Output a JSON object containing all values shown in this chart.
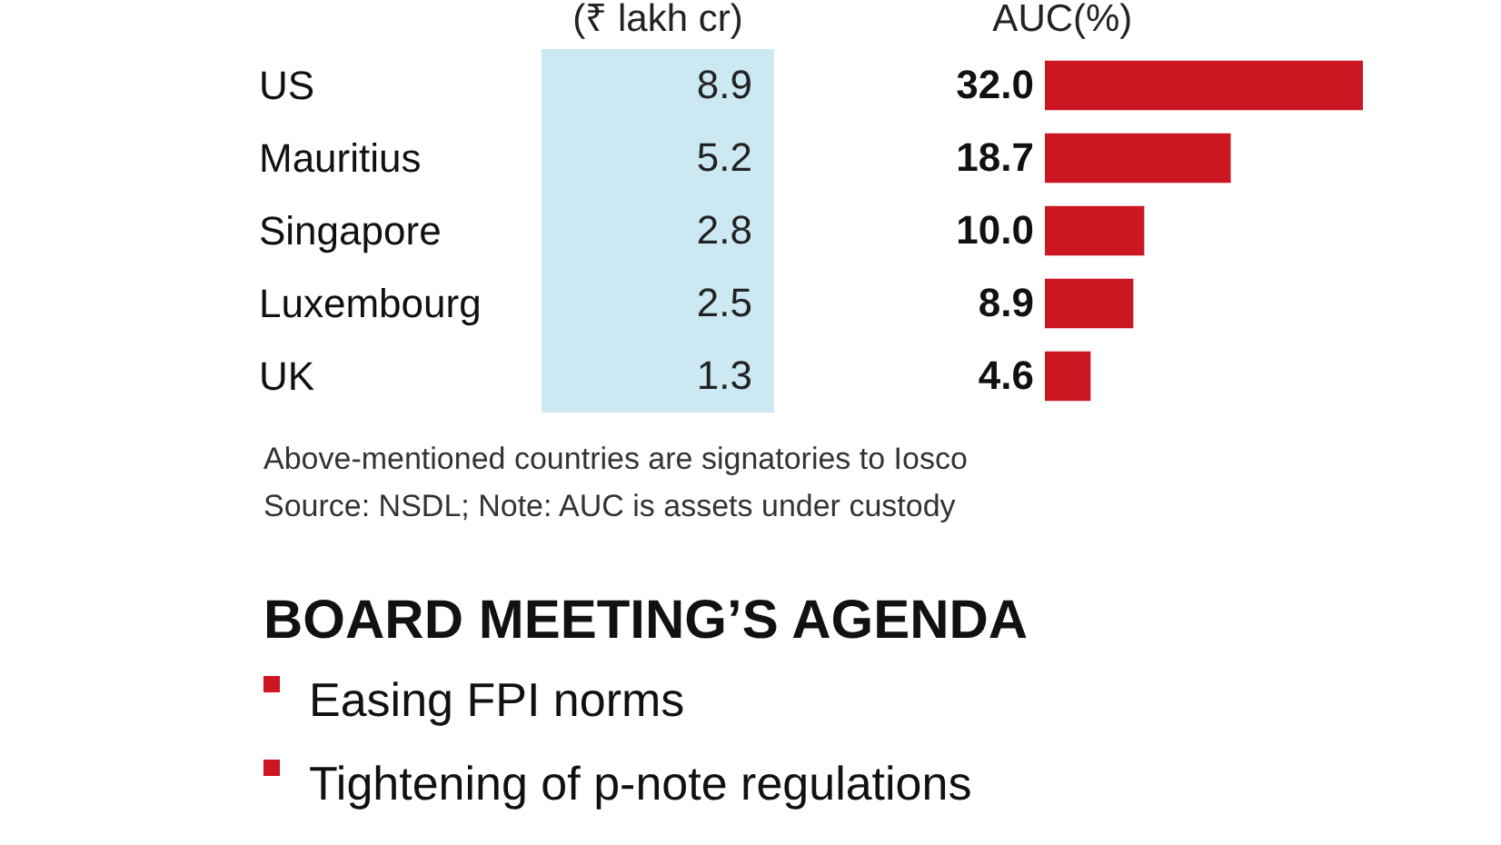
{
  "chart_data": [
    {
      "type": "other",
      "xlabel": "(₹ lakh cr)",
      "categories": [
        "US",
        "Mauritius",
        "Singapore",
        "Luxembourg",
        "UK"
      ],
      "values": [
        8.9,
        5.2,
        2.8,
        2.5,
        1.3
      ],
      "data_labels": true
    },
    {
      "type": "bar",
      "orientation": "horizontal",
      "xlabel": "AUC(%)",
      "categories": [
        null,
        null,
        null,
        null,
        null
      ],
      "values": [
        32.0,
        18.7,
        10.0,
        8.9,
        4.6
      ],
      "value_labels": [
        "32.0",
        "18.7",
        "10.0",
        "8.9",
        "4.6"
      ],
      "color": "#cc1622",
      "tick_labels": false,
      "annotations": [
        "Above-mentioned countries are signatories to Iosco",
        "Source: NSDL; Note: AUC is assets under custody",
        "BOARD MEETING’S AGENDA",
        "Easing FPI norms",
        "Tightening of p-note regulations"
      ]
    }
  ]
}
